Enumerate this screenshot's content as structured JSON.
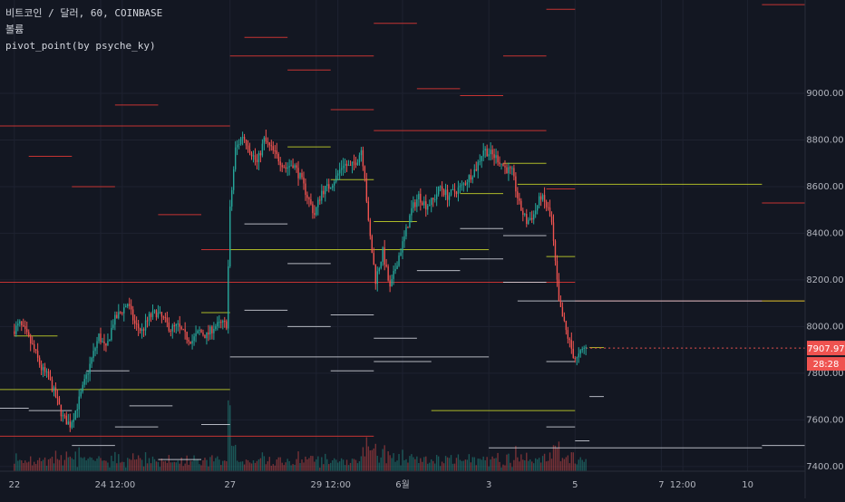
{
  "legend": {
    "symbol_line": "비트코인 / 달러, 60, COINBASE",
    "volume_label": "볼륨",
    "indicator_label": "pivot_point(by psyche_ky)"
  },
  "colors": {
    "background": "#131722",
    "up": "#26a69a",
    "down": "#ef5350",
    "pivot_red": "#e53935",
    "pivot_yellow": "#c8d62a",
    "pivot_white": "#d1d4dc",
    "grid": "#1e2230",
    "axis_text": "#b2b5be",
    "price_tag": "#ef5350"
  },
  "chart_data": {
    "type": "candlestick",
    "symbol": "비트코인 / 달러",
    "interval": "60",
    "exchange": "COINBASE",
    "y_axis": {
      "range": [
        7380,
        9400
      ],
      "ticks": [
        7400,
        7600,
        7800,
        8000,
        8200,
        8400,
        8600,
        8800,
        9000
      ],
      "tick_labels": [
        "7400.00",
        "7600.00",
        "7800.00",
        "8000.00",
        "8200.00",
        "8400.00",
        "8600.00",
        "8800.00",
        "9000.00"
      ]
    },
    "x_axis": {
      "range_hours": [
        -8,
        440
      ],
      "ticks": [
        {
          "h": 0,
          "label": "22"
        },
        {
          "h": 48,
          "label": "24"
        },
        {
          "h": 60,
          "label": "12:00"
        },
        {
          "h": 120,
          "label": "27"
        },
        {
          "h": 168,
          "label": "29"
        },
        {
          "h": 180,
          "label": "12:00"
        },
        {
          "h": 216,
          "label": "6월"
        },
        {
          "h": 264,
          "label": "3"
        },
        {
          "h": 312,
          "label": "5"
        },
        {
          "h": 360,
          "label": "7"
        },
        {
          "h": 372,
          "label": "12:00"
        },
        {
          "h": 408,
          "label": "10"
        }
      ]
    },
    "last_price": "7907.97",
    "countdown": "28:28",
    "price_path": [
      [
        0,
        7980
      ],
      [
        4,
        8010
      ],
      [
        8,
        7960
      ],
      [
        12,
        7900
      ],
      [
        16,
        7820
      ],
      [
        20,
        7780
      ],
      [
        24,
        7700
      ],
      [
        28,
        7610
      ],
      [
        32,
        7580
      ],
      [
        36,
        7660
      ],
      [
        40,
        7760
      ],
      [
        44,
        7860
      ],
      [
        48,
        7960
      ],
      [
        52,
        7900
      ],
      [
        56,
        8020
      ],
      [
        60,
        8060
      ],
      [
        64,
        8100
      ],
      [
        68,
        8010
      ],
      [
        72,
        7980
      ],
      [
        76,
        8040
      ],
      [
        80,
        8060
      ],
      [
        84,
        8030
      ],
      [
        88,
        7990
      ],
      [
        92,
        8000
      ],
      [
        96,
        7960
      ],
      [
        100,
        7940
      ],
      [
        104,
        7980
      ],
      [
        108,
        7960
      ],
      [
        112,
        8000
      ],
      [
        116,
        8010
      ],
      [
        119,
        8010
      ],
      [
        121,
        8500
      ],
      [
        124,
        8760
      ],
      [
        128,
        8820
      ],
      [
        132,
        8760
      ],
      [
        136,
        8700
      ],
      [
        140,
        8800
      ],
      [
        144,
        8760
      ],
      [
        148,
        8720
      ],
      [
        152,
        8680
      ],
      [
        156,
        8700
      ],
      [
        160,
        8640
      ],
      [
        164,
        8560
      ],
      [
        168,
        8480
      ],
      [
        172,
        8580
      ],
      [
        176,
        8600
      ],
      [
        180,
        8640
      ],
      [
        184,
        8700
      ],
      [
        188,
        8680
      ],
      [
        192,
        8720
      ],
      [
        194,
        8760
      ],
      [
        196,
        8650
      ],
      [
        198,
        8440
      ],
      [
        202,
        8200
      ],
      [
        206,
        8320
      ],
      [
        210,
        8160
      ],
      [
        214,
        8280
      ],
      [
        218,
        8380
      ],
      [
        222,
        8500
      ],
      [
        226,
        8560
      ],
      [
        230,
        8520
      ],
      [
        234,
        8540
      ],
      [
        238,
        8600
      ],
      [
        242,
        8560
      ],
      [
        246,
        8580
      ],
      [
        250,
        8600
      ],
      [
        254,
        8640
      ],
      [
        258,
        8680
      ],
      [
        262,
        8760
      ],
      [
        266,
        8740
      ],
      [
        270,
        8720
      ],
      [
        274,
        8680
      ],
      [
        278,
        8660
      ],
      [
        282,
        8520
      ],
      [
        286,
        8450
      ],
      [
        290,
        8480
      ],
      [
        294,
        8560
      ],
      [
        298,
        8500
      ],
      [
        300,
        8440
      ],
      [
        304,
        8100
      ],
      [
        308,
        7980
      ],
      [
        312,
        7880
      ],
      [
        314,
        7860
      ],
      [
        318,
        7908
      ]
    ],
    "pivot_levels": [
      {
        "color": "red",
        "x0": -8,
        "x1": 120,
        "y": 8860
      },
      {
        "color": "red",
        "x0": -8,
        "x1": 120,
        "y": 8190
      },
      {
        "color": "red",
        "x0": -8,
        "x1": 200,
        "y": 7530
      },
      {
        "color": "red",
        "x0": 120,
        "x1": 312,
        "y": 8190
      },
      {
        "color": "red",
        "x0": 120,
        "x1": 200,
        "y": 9160
      },
      {
        "color": "red",
        "x0": 200,
        "x1": 296,
        "y": 8840
      },
      {
        "color": "red",
        "x0": 296,
        "x1": 312,
        "y": 8590
      },
      {
        "color": "red",
        "x0": 312,
        "x1": 440,
        "y": 8110
      },
      {
        "color": "red",
        "x0": 296,
        "x1": 312,
        "y": 9360
      },
      {
        "color": "red",
        "x0": 416,
        "x1": 440,
        "y": 9380
      },
      {
        "color": "red",
        "x0": 416,
        "x1": 440,
        "y": 8530
      },
      {
        "color": "red",
        "x0": 8,
        "x1": 32,
        "y": 8730
      },
      {
        "color": "red",
        "x0": 32,
        "x1": 56,
        "y": 8600
      },
      {
        "color": "red",
        "x0": 56,
        "x1": 80,
        "y": 8950
      },
      {
        "color": "red",
        "x0": 80,
        "x1": 104,
        "y": 8480
      },
      {
        "color": "red",
        "x0": 104,
        "x1": 120,
        "y": 8330
      },
      {
        "color": "red",
        "x0": 128,
        "x1": 152,
        "y": 9240
      },
      {
        "color": "red",
        "x0": 152,
        "x1": 176,
        "y": 9100
      },
      {
        "color": "red",
        "x0": 176,
        "x1": 200,
        "y": 8930
      },
      {
        "color": "red",
        "x0": 200,
        "x1": 224,
        "y": 9300
      },
      {
        "color": "red",
        "x0": 224,
        "x1": 248,
        "y": 9020
      },
      {
        "color": "red",
        "x0": 248,
        "x1": 272,
        "y": 8990
      },
      {
        "color": "red",
        "x0": 272,
        "x1": 296,
        "y": 9160
      },
      {
        "color": "yellow",
        "x0": -8,
        "x1": 120,
        "y": 7730
      },
      {
        "color": "yellow",
        "x0": 0,
        "x1": 24,
        "y": 7960
      },
      {
        "color": "yellow",
        "x0": 104,
        "x1": 120,
        "y": 8060
      },
      {
        "color": "yellow",
        "x0": 120,
        "x1": 264,
        "y": 8330
      },
      {
        "color": "yellow",
        "x0": 152,
        "x1": 176,
        "y": 8770
      },
      {
        "color": "yellow",
        "x0": 176,
        "x1": 200,
        "y": 8630
      },
      {
        "color": "yellow",
        "x0": 200,
        "x1": 224,
        "y": 8450
      },
      {
        "color": "yellow",
        "x0": 248,
        "x1": 272,
        "y": 8570
      },
      {
        "color": "yellow",
        "x0": 272,
        "x1": 296,
        "y": 8700
      },
      {
        "color": "yellow",
        "x0": 280,
        "x1": 416,
        "y": 8610
      },
      {
        "color": "yellow",
        "x0": 296,
        "x1": 312,
        "y": 8300
      },
      {
        "color": "yellow",
        "x0": 232,
        "x1": 312,
        "y": 7640
      },
      {
        "color": "yellow",
        "x0": 416,
        "x1": 440,
        "y": 8110
      },
      {
        "color": "yellow",
        "x0": 320,
        "x1": 328,
        "y": 7910
      },
      {
        "color": "white",
        "x0": 120,
        "x1": 264,
        "y": 7870
      },
      {
        "color": "white",
        "x0": 264,
        "x1": 416,
        "y": 7480
      },
      {
        "color": "white",
        "x0": 280,
        "x1": 416,
        "y": 8110
      },
      {
        "color": "white",
        "x0": 416,
        "x1": 440,
        "y": 7490
      },
      {
        "color": "white",
        "x0": -8,
        "x1": 8,
        "y": 7650
      },
      {
        "color": "white",
        "x0": 8,
        "x1": 32,
        "y": 7640
      },
      {
        "color": "white",
        "x0": 32,
        "x1": 56,
        "y": 7490
      },
      {
        "color": "white",
        "x0": 56,
        "x1": 80,
        "y": 7570
      },
      {
        "color": "white",
        "x0": 80,
        "x1": 104,
        "y": 7430
      },
      {
        "color": "white",
        "x0": 104,
        "x1": 120,
        "y": 7580
      },
      {
        "color": "white",
        "x0": 128,
        "x1": 152,
        "y": 8440
      },
      {
        "color": "white",
        "x0": 152,
        "x1": 176,
        "y": 8270
      },
      {
        "color": "white",
        "x0": 176,
        "x1": 200,
        "y": 8050
      },
      {
        "color": "white",
        "x0": 200,
        "x1": 224,
        "y": 7950
      },
      {
        "color": "white",
        "x0": 224,
        "x1": 248,
        "y": 8240
      },
      {
        "color": "white",
        "x0": 248,
        "x1": 272,
        "y": 8290
      },
      {
        "color": "white",
        "x0": 272,
        "x1": 296,
        "y": 8390
      },
      {
        "color": "white",
        "x0": 296,
        "x1": 312,
        "y": 7570
      },
      {
        "color": "white",
        "x0": 312,
        "x1": 320,
        "y": 7510
      },
      {
        "color": "white",
        "x0": 320,
        "x1": 328,
        "y": 7700
      },
      {
        "color": "white",
        "x0": 40,
        "x1": 64,
        "y": 7810
      },
      {
        "color": "white",
        "x0": 64,
        "x1": 88,
        "y": 7660
      },
      {
        "color": "white",
        "x0": 176,
        "x1": 200,
        "y": 7810
      },
      {
        "color": "white",
        "x0": 200,
        "x1": 232,
        "y": 7850
      },
      {
        "color": "white",
        "x0": 128,
        "x1": 152,
        "y": 8070
      },
      {
        "color": "white",
        "x0": 152,
        "x1": 176,
        "y": 8000
      },
      {
        "color": "white",
        "x0": 248,
        "x1": 272,
        "y": 8420
      },
      {
        "color": "white",
        "x0": 272,
        "x1": 296,
        "y": 8190
      },
      {
        "color": "white",
        "x0": 296,
        "x1": 312,
        "y": 7850
      }
    ]
  }
}
